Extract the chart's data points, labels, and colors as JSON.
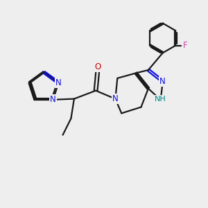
{
  "bg_color": "#eeeeee",
  "bond_color": "#1a1a1a",
  "nitrogen_color": "#1010dd",
  "oxygen_color": "#cc0000",
  "fluorine_color": "#cc44aa",
  "nh_color": "#008888",
  "line_width": 1.6,
  "figsize": [
    3.0,
    3.0
  ],
  "dpi": 100,
  "xlim": [
    0,
    10
  ],
  "ylim": [
    1,
    9
  ]
}
